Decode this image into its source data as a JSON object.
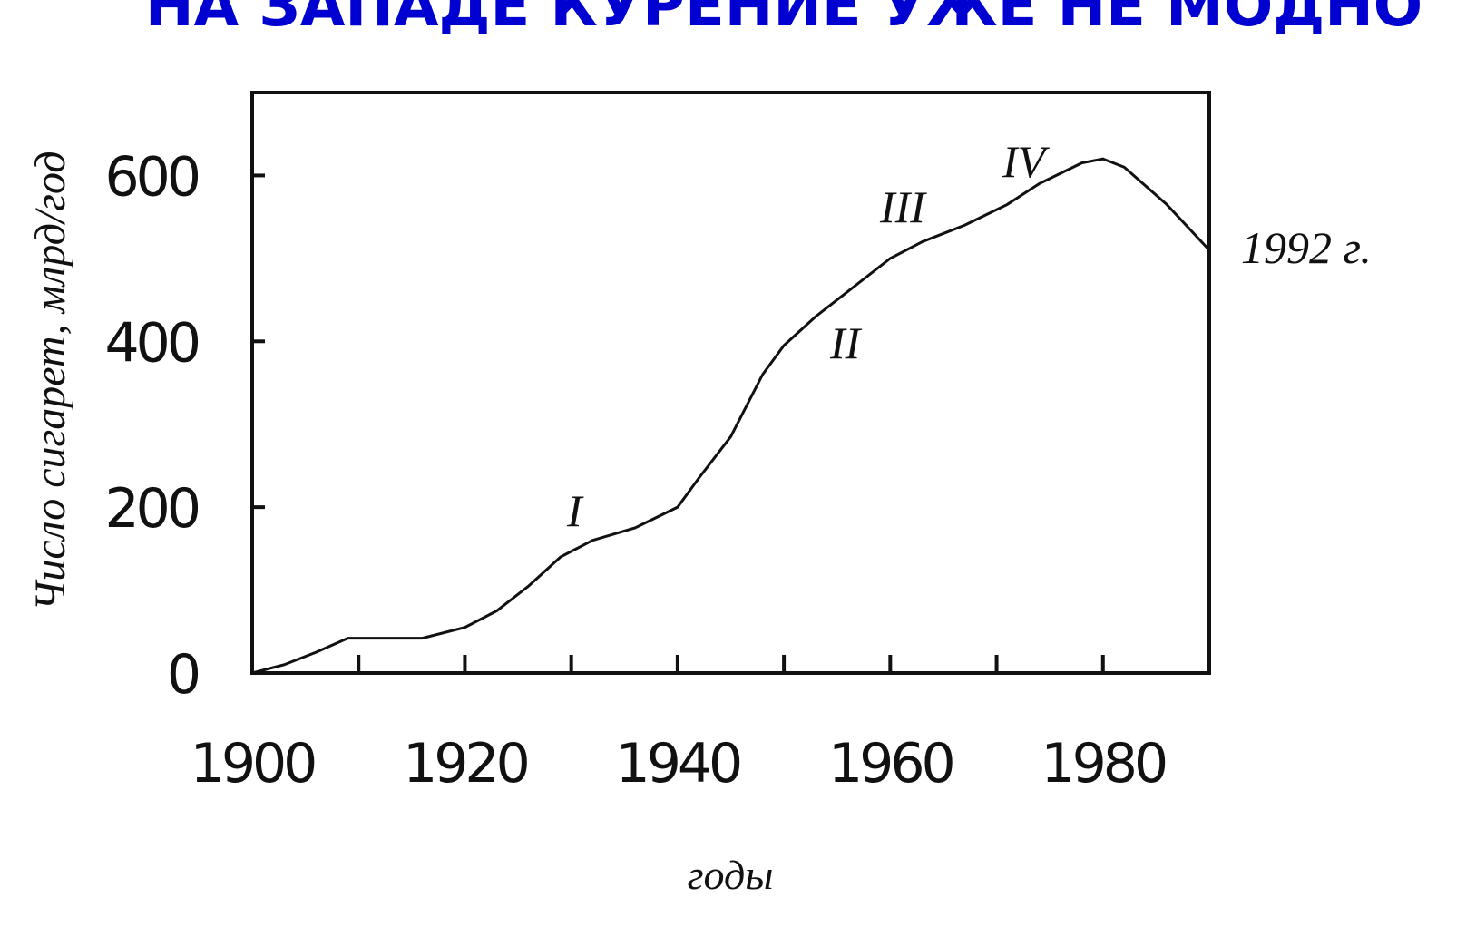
{
  "chart_data": {
    "type": "line",
    "title": "НА ЗАПАДЕ КУРЕНИЕ УЖЕ НЕ МОДНО",
    "title_color": "#0000d0",
    "xlabel": "годы",
    "ylabel": "Число сигарет, млрд/год",
    "x": [
      1900,
      1903,
      1906,
      1909,
      1912,
      1916,
      1920,
      1923,
      1926,
      1929,
      1932,
      1936,
      1940,
      1942,
      1945,
      1948,
      1950,
      1953,
      1956,
      1960,
      1963,
      1967,
      1971,
      1974,
      1978,
      1980,
      1982,
      1986,
      1990
    ],
    "series": [
      {
        "name": "Число сигарет",
        "color": "#111111",
        "values": [
          0,
          10,
          25,
          42,
          42,
          42,
          55,
          75,
          105,
          140,
          160,
          175,
          200,
          235,
          285,
          360,
          395,
          430,
          460,
          500,
          520,
          540,
          565,
          590,
          615,
          620,
          610,
          565,
          510
        ]
      }
    ],
    "xlim": [
      1900,
      1990
    ],
    "ylim": [
      0,
      700
    ],
    "xticks": [
      1900,
      1920,
      1940,
      1960,
      1980
    ],
    "xminor_ticks": [
      1910,
      1930,
      1950,
      1970
    ],
    "yticks": [
      0,
      200,
      400,
      600
    ],
    "annotations": [
      "I",
      "II",
      "III",
      "IV",
      "1992 г."
    ]
  }
}
